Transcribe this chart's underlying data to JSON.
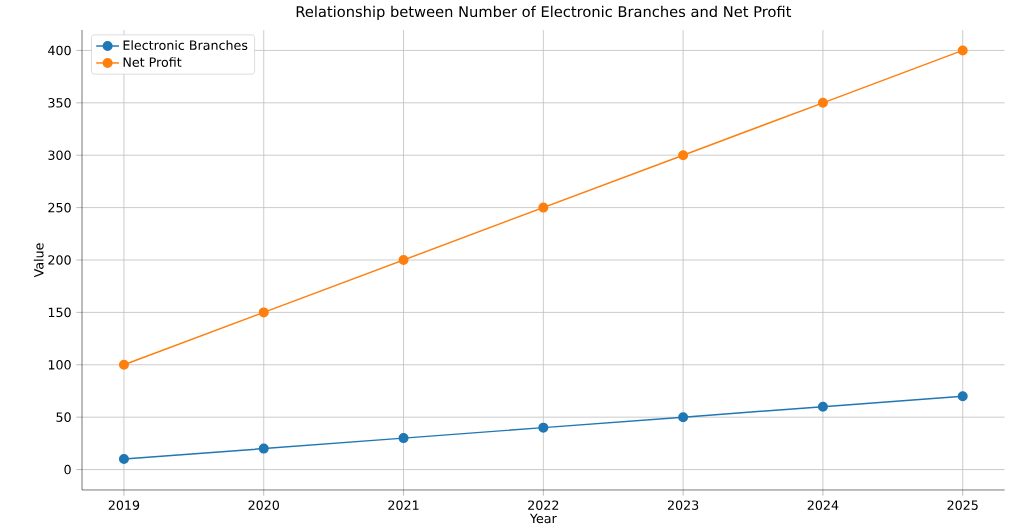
{
  "chart_data": {
    "type": "line",
    "title": "Relationship between Number of Electronic Branches and Net Profit",
    "xlabel": "Year",
    "ylabel": "Value",
    "x": [
      2019,
      2020,
      2021,
      2022,
      2023,
      2024,
      2025
    ],
    "series": [
      {
        "name": "Electronic Branches",
        "color": "#1f77b4",
        "values": [
          10,
          20,
          30,
          40,
          50,
          60,
          70
        ]
      },
      {
        "name": "Net Profit",
        "color": "#ff7f0e",
        "values": [
          100,
          150,
          200,
          250,
          300,
          350,
          400
        ]
      }
    ],
    "xlim": [
      2018.7,
      2025.3
    ],
    "ylim": [
      -19.5,
      419.5
    ],
    "xticks": [
      2019,
      2020,
      2021,
      2022,
      2023,
      2024,
      2025
    ],
    "yticks": [
      0,
      50,
      100,
      150,
      200,
      250,
      300,
      350,
      400
    ],
    "grid": true,
    "legend": "top left",
    "marker": "circle",
    "line_style": "solid"
  }
}
